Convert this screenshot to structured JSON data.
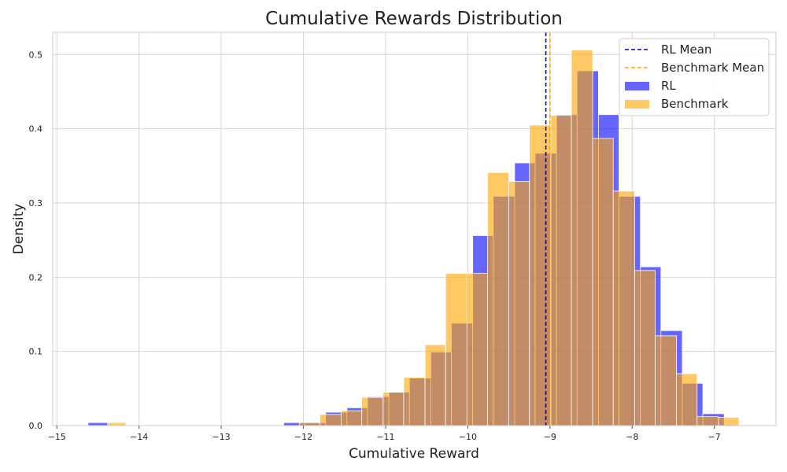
{
  "chart_data": {
    "type": "histogram",
    "title": "Cumulative Rewards Distribution",
    "xlabel": "Cumulative Reward",
    "ylabel": "Density",
    "xlim": [
      -15.05,
      -6.25
    ],
    "ylim": [
      0,
      0.53
    ],
    "xticks": [
      -15,
      -14,
      -13,
      -12,
      -11,
      -10,
      -9,
      -8,
      -7
    ],
    "xtick_labels": [
      "−15",
      "−14",
      "−13",
      "−12",
      "−11",
      "−10",
      "−9",
      "−8",
      "−7"
    ],
    "yticks": [
      0.0,
      0.1,
      0.2,
      0.3,
      0.4,
      0.5
    ],
    "ytick_labels": [
      "0.0",
      "0.1",
      "0.2",
      "0.3",
      "0.4",
      "0.5"
    ],
    "grid": true,
    "legend_position": "top-right",
    "series": [
      {
        "name": "RL",
        "kind": "histogram",
        "color": "#0000ff",
        "opacity": 0.6,
        "bins": [
          {
            "x0": -14.62,
            "x1": -14.38,
            "density": 0.004
          },
          {
            "x0": -12.24,
            "x1": -11.98,
            "density": 0.004
          },
          {
            "x0": -11.98,
            "x1": -11.73,
            "density": 0.004
          },
          {
            "x0": -11.73,
            "x1": -11.47,
            "density": 0.018
          },
          {
            "x0": -11.47,
            "x1": -11.22,
            "density": 0.024
          },
          {
            "x0": -11.22,
            "x1": -10.96,
            "density": 0.039
          },
          {
            "x0": -10.96,
            "x1": -10.71,
            "density": 0.045
          },
          {
            "x0": -10.71,
            "x1": -10.45,
            "density": 0.064
          },
          {
            "x0": -10.45,
            "x1": -10.2,
            "density": 0.099
          },
          {
            "x0": -10.2,
            "x1": -9.94,
            "density": 0.138
          },
          {
            "x0": -9.94,
            "x1": -9.69,
            "density": 0.256
          },
          {
            "x0": -9.69,
            "x1": -9.43,
            "density": 0.309
          },
          {
            "x0": -9.43,
            "x1": -9.18,
            "density": 0.354
          },
          {
            "x0": -9.18,
            "x1": -8.92,
            "density": 0.367
          },
          {
            "x0": -8.92,
            "x1": -8.67,
            "density": 0.419
          },
          {
            "x0": -8.67,
            "x1": -8.41,
            "density": 0.478
          },
          {
            "x0": -8.41,
            "x1": -8.16,
            "density": 0.419
          },
          {
            "x0": -8.16,
            "x1": -7.9,
            "density": 0.309
          },
          {
            "x0": -7.9,
            "x1": -7.65,
            "density": 0.214
          },
          {
            "x0": -7.65,
            "x1": -7.39,
            "density": 0.128
          },
          {
            "x0": -7.39,
            "x1": -7.14,
            "density": 0.057
          },
          {
            "x0": -7.14,
            "x1": -6.88,
            "density": 0.016
          }
        ],
        "mean": -9.05
      },
      {
        "name": "Benchmark",
        "kind": "histogram",
        "color": "#ffa500",
        "opacity": 0.6,
        "bins": [
          {
            "x0": -14.38,
            "x1": -14.16,
            "density": 0.004
          },
          {
            "x0": -12.05,
            "x1": -11.8,
            "density": 0.004
          },
          {
            "x0": -11.8,
            "x1": -11.54,
            "density": 0.015
          },
          {
            "x0": -11.54,
            "x1": -11.29,
            "density": 0.02
          },
          {
            "x0": -11.29,
            "x1": -11.03,
            "density": 0.038
          },
          {
            "x0": -11.03,
            "x1": -10.78,
            "density": 0.045
          },
          {
            "x0": -10.78,
            "x1": -10.52,
            "density": 0.065
          },
          {
            "x0": -10.52,
            "x1": -10.27,
            "density": 0.109
          },
          {
            "x0": -10.27,
            "x1": -10.01,
            "density": 0.205
          },
          {
            "x0": -10.01,
            "x1": -9.76,
            "density": 0.205
          },
          {
            "x0": -9.76,
            "x1": -9.5,
            "density": 0.341
          },
          {
            "x0": -9.5,
            "x1": -9.25,
            "density": 0.329
          },
          {
            "x0": -9.25,
            "x1": -8.99,
            "density": 0.405
          },
          {
            "x0": -8.99,
            "x1": -8.74,
            "density": 0.418
          },
          {
            "x0": -8.74,
            "x1": -8.48,
            "density": 0.506
          },
          {
            "x0": -8.48,
            "x1": -8.23,
            "density": 0.387
          },
          {
            "x0": -8.23,
            "x1": -7.97,
            "density": 0.316
          },
          {
            "x0": -7.97,
            "x1": -7.72,
            "density": 0.209
          },
          {
            "x0": -7.72,
            "x1": -7.46,
            "density": 0.121
          },
          {
            "x0": -7.46,
            "x1": -7.21,
            "density": 0.07
          },
          {
            "x0": -7.21,
            "x1": -6.95,
            "density": 0.012
          },
          {
            "x0": -6.95,
            "x1": -6.7,
            "density": 0.011
          }
        ],
        "mean": -9.0
      }
    ],
    "mean_lines": [
      {
        "name": "RL Mean",
        "x": -9.05,
        "color": "#0000cd",
        "style": "dashed"
      },
      {
        "name": "Benchmark Mean",
        "x": -9.0,
        "color": "#ffa500",
        "style": "dashed"
      }
    ],
    "legend": [
      {
        "label": "RL Mean",
        "kind": "line",
        "color": "#0000cd"
      },
      {
        "label": "Benchmark Mean",
        "kind": "line",
        "color": "#ffa500"
      },
      {
        "label": "RL",
        "kind": "patch",
        "color": "#0000ff"
      },
      {
        "label": "Benchmark",
        "kind": "patch",
        "color": "#ffa500"
      }
    ]
  }
}
